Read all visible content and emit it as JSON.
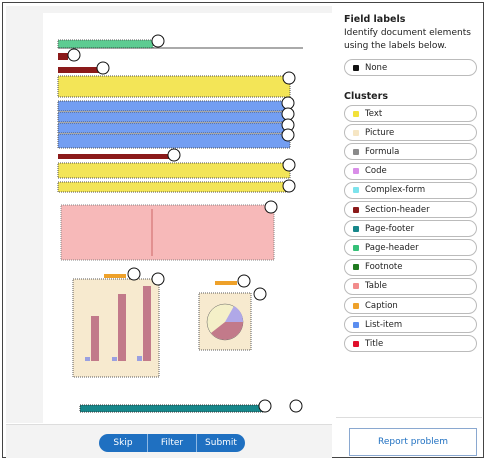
{
  "panel": {
    "title": "Field labels",
    "description": "Identify document elements using the labels below.",
    "none_label": "None",
    "clusters_title": "Clusters",
    "clusters": [
      {
        "name": "Text",
        "color": "#f2e13a"
      },
      {
        "name": "Picture",
        "color": "#f6e6c4"
      },
      {
        "name": "Formula",
        "color": "#8a8a8a"
      },
      {
        "name": "Code",
        "color": "#d98ee8"
      },
      {
        "name": "Complex-form",
        "color": "#7de3ec"
      },
      {
        "name": "Section-header",
        "color": "#8b1a1a"
      },
      {
        "name": "Page-footer",
        "color": "#17878a"
      },
      {
        "name": "Page-header",
        "color": "#35c077"
      },
      {
        "name": "Footnote",
        "color": "#1f7a1f"
      },
      {
        "name": "Table",
        "color": "#f28c8c"
      },
      {
        "name": "Caption",
        "color": "#eea12a"
      },
      {
        "name": "List-item",
        "color": "#5b8ef0"
      },
      {
        "name": "Title",
        "color": "#e0102c"
      }
    ]
  },
  "actions": {
    "skip": "Skip",
    "filter": "Filter",
    "submit": "Submit",
    "report": "Report problem"
  }
}
